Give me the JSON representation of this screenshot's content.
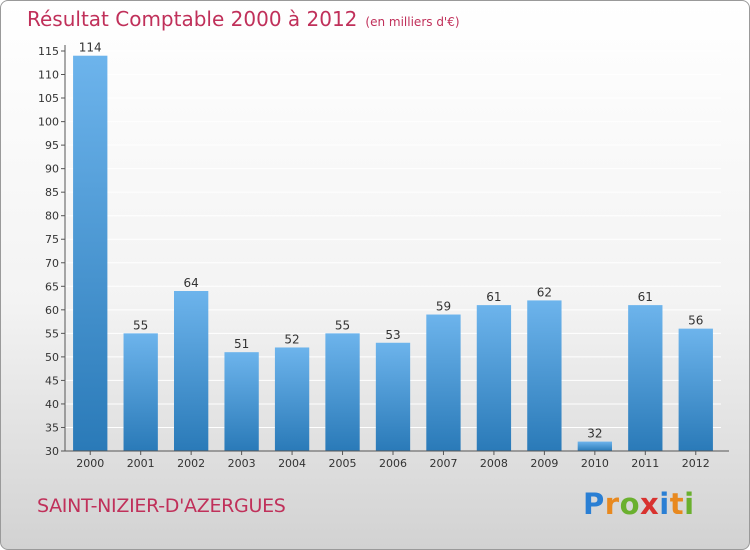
{
  "title": "Résultat Comptable 2000 à 2012",
  "subtitle": "(en milliers d'€)",
  "town": "SAINT-NIZIER-D'AZERGUES",
  "logo": {
    "letters": [
      "P",
      "r",
      "o",
      "x",
      "i",
      "t",
      "i"
    ],
    "colors": [
      "#2a7fd4",
      "#e8891f",
      "#6ab02e",
      "#d8322f",
      "#2a7fd4",
      "#e8891f",
      "#6ab02e"
    ]
  },
  "colors": {
    "bar_light": "#6db4ec",
    "bar_dark": "#2a7ab8",
    "title": "#c0305a",
    "grid": "#ffffff"
  },
  "chart_data": {
    "type": "bar",
    "categories": [
      "2000",
      "2001",
      "2002",
      "2003",
      "2004",
      "2005",
      "2006",
      "2007",
      "2008",
      "2009",
      "2010",
      "2011",
      "2012"
    ],
    "values": [
      114,
      55,
      64,
      51,
      52,
      55,
      53,
      59,
      61,
      62,
      32,
      61,
      56
    ],
    "data_labels": [
      "114",
      "55",
      "64",
      "51",
      "52",
      "55",
      "53",
      "59",
      "61",
      "62",
      "32",
      "61",
      "56"
    ],
    "title": "Résultat Comptable 2000 à 2012",
    "ylim": [
      30,
      115
    ],
    "yticks": [
      30,
      35,
      40,
      45,
      50,
      55,
      60,
      65,
      70,
      75,
      80,
      85,
      90,
      95,
      100,
      105,
      110,
      115
    ],
    "grid": true
  }
}
